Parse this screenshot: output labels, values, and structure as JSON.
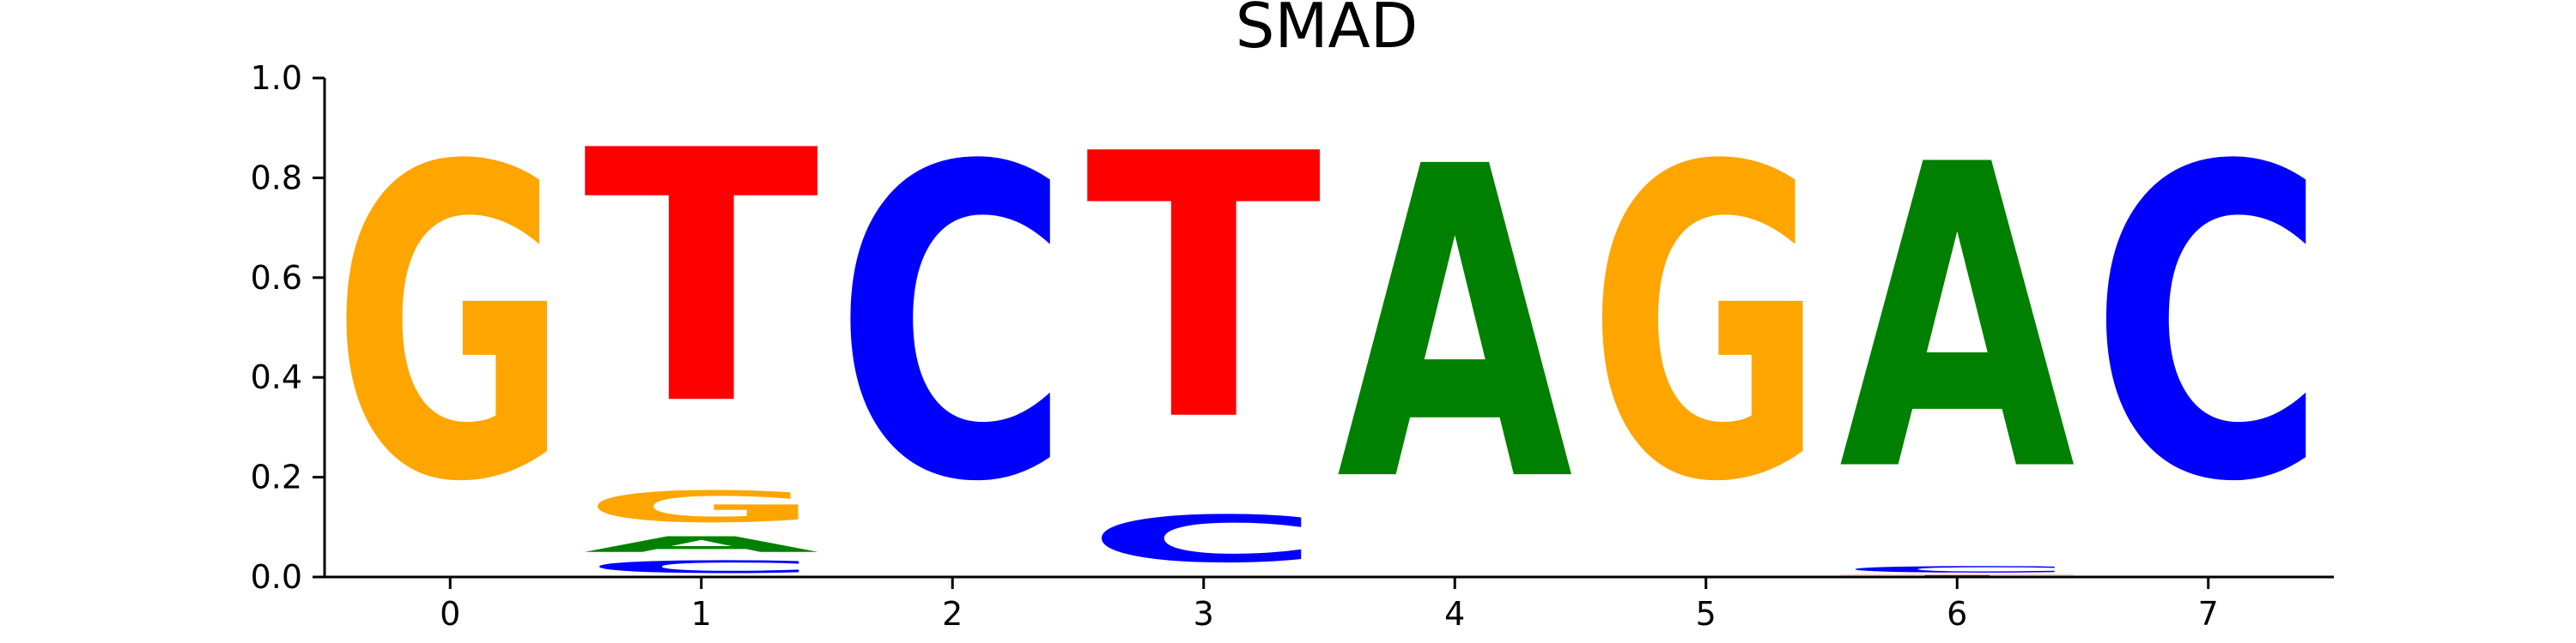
{
  "chart_data": {
    "type": "sequence-logo",
    "title": "SMAD",
    "xlabel": "",
    "ylabel": "",
    "ylim": [
      0,
      1.0
    ],
    "xlim": [
      -0.5,
      7.5
    ],
    "yticks": [
      "0.0",
      "0.2",
      "0.4",
      "0.6",
      "0.8",
      "1.0"
    ],
    "xticks": [
      "0",
      "1",
      "2",
      "3",
      "4",
      "5",
      "6",
      "7"
    ],
    "colors": {
      "A": "#008000",
      "C": "#0000ff",
      "G": "#ffa500",
      "T": "#ff0000"
    },
    "positions": [
      {
        "x": 0,
        "letters": [
          {
            "base": "G",
            "height": 1.0
          }
        ]
      },
      {
        "x": 1,
        "letters": [
          {
            "base": "C",
            "height": 0.04
          },
          {
            "base": "A",
            "height": 0.05
          },
          {
            "base": "G",
            "height": 0.1
          },
          {
            "base": "T",
            "height": 0.81
          }
        ]
      },
      {
        "x": 2,
        "letters": [
          {
            "base": "C",
            "height": 1.0
          }
        ]
      },
      {
        "x": 3,
        "letters": [
          {
            "base": "C",
            "height": 0.15
          },
          {
            "base": "T",
            "height": 0.85
          }
        ]
      },
      {
        "x": 4,
        "letters": [
          {
            "base": "A",
            "height": 1.0
          }
        ]
      },
      {
        "x": 5,
        "letters": [
          {
            "base": "G",
            "height": 1.0
          }
        ]
      },
      {
        "x": 6,
        "letters": [
          {
            "base": "T",
            "height": 0.005
          },
          {
            "base": "C",
            "height": 0.02
          },
          {
            "base": "A",
            "height": 0.975
          }
        ]
      },
      {
        "x": 7,
        "letters": [
          {
            "base": "C",
            "height": 1.0
          }
        ]
      }
    ]
  }
}
